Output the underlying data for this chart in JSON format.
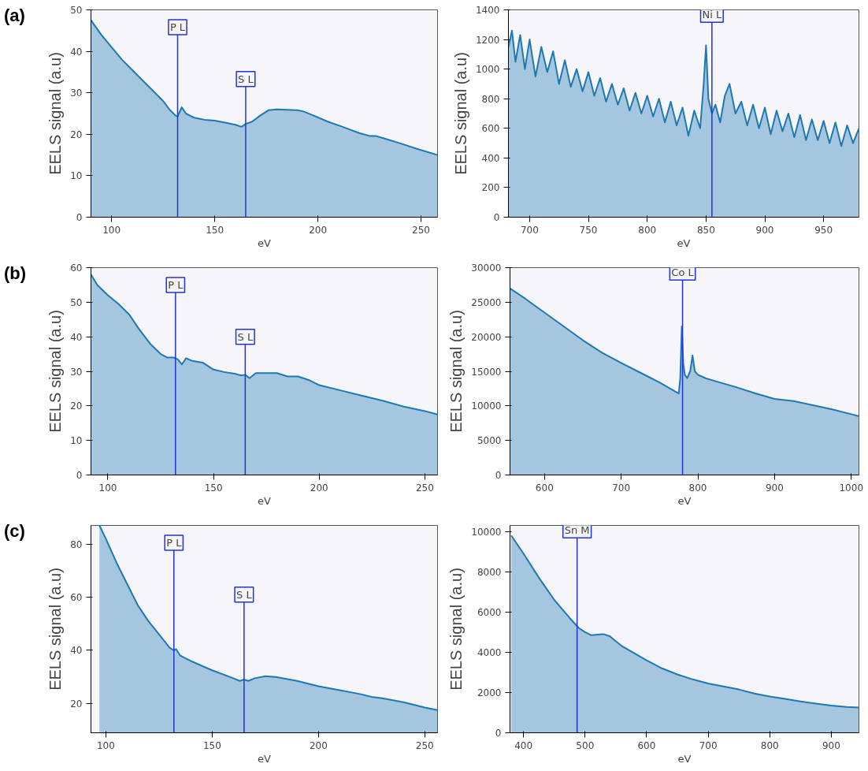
{
  "chart_data": [
    {
      "type": "area",
      "annotations": [
        "(a)"
      ],
      "xlabel": "eV",
      "ylabel": "EELS signal (a.u)",
      "xlim": [
        90,
        258
      ],
      "ylim": [
        0,
        50
      ],
      "xticks": [
        100,
        150,
        200,
        250
      ],
      "yticks": [
        0,
        10,
        20,
        30,
        40,
        50
      ],
      "grid": false,
      "ref_lines": [
        {
          "axis": "x",
          "value": 132,
          "label": "P L"
        },
        {
          "axis": "x",
          "value": 165,
          "label": "S L"
        }
      ],
      "series": [
        {
          "color": "#1f78b4",
          "x": [
            90,
            95,
            100,
            105,
            110,
            115,
            120,
            125,
            128,
            131,
            132,
            134,
            136,
            138,
            140,
            145,
            150,
            155,
            160,
            163,
            165,
            168,
            172,
            176,
            180,
            185,
            190,
            193,
            198,
            205,
            212,
            220,
            225,
            228,
            232,
            240,
            248,
            258
          ],
          "values": [
            47.5,
            44,
            41,
            38,
            35.5,
            33,
            30.5,
            28,
            26,
            24.5,
            24.3,
            26.5,
            25,
            24.5,
            24,
            23.5,
            23.3,
            22.8,
            22.3,
            21.8,
            22.5,
            23,
            24.5,
            25.8,
            26,
            25.9,
            25.8,
            25.5,
            24.5,
            23,
            21.8,
            20.3,
            19.6,
            19.6,
            19,
            17.8,
            16.5,
            15
          ]
        }
      ]
    },
    {
      "type": "area",
      "xlabel": "eV",
      "ylabel": "EELS signal (a.u)",
      "xlim": [
        682,
        980
      ],
      "ylim": [
        0,
        1400
      ],
      "xticks": [
        700,
        750,
        800,
        850,
        900,
        950
      ],
      "yticks": [
        0,
        200,
        400,
        600,
        800,
        1000,
        1200,
        1400
      ],
      "grid": false,
      "ref_lines": [
        {
          "axis": "x",
          "value": 855,
          "label": "Ni L"
        }
      ],
      "series": [
        {
          "color": "#1f78b4",
          "x": [
            682,
            685,
            688,
            692,
            696,
            700,
            705,
            710,
            715,
            720,
            725,
            730,
            735,
            740,
            745,
            750,
            755,
            760,
            765,
            770,
            775,
            780,
            785,
            790,
            795,
            800,
            805,
            810,
            815,
            820,
            825,
            830,
            835,
            840,
            845,
            848,
            850,
            852,
            855,
            858,
            862,
            866,
            870,
            875,
            880,
            885,
            890,
            895,
            900,
            905,
            910,
            915,
            920,
            925,
            930,
            935,
            940,
            945,
            950,
            955,
            960,
            965,
            970,
            975,
            980
          ],
          "values": [
            1150,
            1260,
            1050,
            1230,
            1000,
            1200,
            950,
            1150,
            980,
            1120,
            900,
            1060,
            880,
            1000,
            850,
            980,
            820,
            940,
            780,
            900,
            760,
            870,
            720,
            840,
            700,
            820,
            680,
            800,
            640,
            780,
            620,
            740,
            550,
            720,
            600,
            900,
            1160,
            800,
            700,
            760,
            640,
            820,
            900,
            700,
            780,
            620,
            760,
            600,
            740,
            560,
            720,
            580,
            700,
            540,
            690,
            520,
            660,
            520,
            650,
            500,
            640,
            480,
            620,
            500,
            600
          ]
        }
      ]
    },
    {
      "type": "area",
      "annotations": [
        "(b)"
      ],
      "xlabel": "eV",
      "ylabel": "EELS signal (a.u)",
      "xlim": [
        92,
        256
      ],
      "ylim": [
        0,
        60
      ],
      "xticks": [
        100,
        150,
        200,
        250
      ],
      "yticks": [
        0,
        10,
        20,
        30,
        40,
        50,
        60
      ],
      "grid": false,
      "ref_lines": [
        {
          "axis": "x",
          "value": 132,
          "label": "P L"
        },
        {
          "axis": "x",
          "value": 165,
          "label": "S L"
        }
      ],
      "series": [
        {
          "color": "#1f78b4",
          "x": [
            92,
            95,
            100,
            105,
            110,
            115,
            120,
            125,
            128,
            131,
            133,
            135,
            137,
            140,
            145,
            150,
            155,
            160,
            163,
            165,
            167,
            170,
            175,
            180,
            185,
            190,
            195,
            200,
            210,
            220,
            230,
            240,
            250,
            256
          ],
          "values": [
            58,
            55,
            52,
            49.5,
            46.5,
            42,
            38,
            35,
            34,
            34,
            33.5,
            32,
            33.8,
            33,
            32.5,
            30.5,
            29.8,
            29.3,
            28.8,
            29,
            28,
            29.5,
            29.5,
            29.5,
            28.5,
            28.5,
            27.5,
            26,
            24.5,
            23,
            21.5,
            19.8,
            18.5,
            17.5
          ]
        }
      ]
    },
    {
      "type": "area",
      "xlabel": "eV",
      "ylabel": "EELS signal (a.u)",
      "xlim": [
        555,
        1010
      ],
      "ylim": [
        0,
        30000
      ],
      "xticks": [
        600,
        700,
        800,
        900,
        1000
      ],
      "yticks": [
        0,
        5000,
        10000,
        15000,
        20000,
        25000,
        30000
      ],
      "grid": false,
      "ref_lines": [
        {
          "axis": "x",
          "value": 780,
          "label": "Co L"
        }
      ],
      "series": [
        {
          "color": "#1f78b4",
          "x": [
            555,
            575,
            600,
            625,
            650,
            675,
            700,
            725,
            750,
            770,
            775,
            777,
            779,
            781,
            783,
            786,
            790,
            793,
            796,
            800,
            810,
            825,
            850,
            875,
            900,
            925,
            950,
            975,
            1000,
            1010
          ],
          "values": [
            27000,
            25500,
            23500,
            21500,
            19500,
            17700,
            16200,
            14800,
            13400,
            12100,
            11800,
            14000,
            21500,
            16000,
            14500,
            14000,
            15000,
            17300,
            15000,
            14500,
            14000,
            13500,
            12700,
            11800,
            11000,
            10700,
            10100,
            9500,
            8800,
            8500
          ]
        }
      ]
    },
    {
      "type": "area",
      "annotations": [
        "(c)"
      ],
      "xlabel": "eV",
      "ylabel": "EELS signal (a.u)",
      "xlim": [
        93,
        256
      ],
      "ylim": [
        9,
        87
      ],
      "xticks": [
        100,
        150,
        200,
        250
      ],
      "yticks": [
        20,
        40,
        60,
        80
      ],
      "grid": false,
      "ref_lines": [
        {
          "axis": "x",
          "value": 132,
          "label": "P L"
        },
        {
          "axis": "x",
          "value": 165,
          "label": "S L"
        }
      ],
      "series": [
        {
          "color": "#1f78b4",
          "x": [
            97,
            100,
            105,
            110,
            115,
            120,
            125,
            130,
            132,
            133,
            135,
            140,
            150,
            160,
            163,
            165,
            167,
            170,
            175,
            180,
            190,
            200,
            210,
            220,
            225,
            230,
            240,
            250,
            256
          ],
          "values": [
            87,
            82,
            73,
            65,
            57,
            51,
            46,
            41,
            40,
            40.5,
            38,
            36,
            32.5,
            29.5,
            28.5,
            29,
            28.5,
            29.5,
            30.3,
            30,
            28.5,
            26.5,
            25,
            23.5,
            22.5,
            22,
            20.5,
            18.5,
            17.5
          ]
        }
      ]
    },
    {
      "type": "area",
      "xlabel": "eV",
      "ylabel": "EELS signal (a.u)",
      "xlim": [
        378,
        945
      ],
      "ylim": [
        0,
        10300
      ],
      "xticks": [
        400,
        500,
        600,
        700,
        800,
        900
      ],
      "yticks": [
        0,
        2000,
        4000,
        6000,
        8000,
        10000
      ],
      "grid": false,
      "ref_lines": [
        {
          "axis": "x",
          "value": 487,
          "label": "Sn M"
        }
      ],
      "series": [
        {
          "color": "#1f78b4",
          "x": [
            380,
            400,
            425,
            450,
            475,
            490,
            500,
            510,
            530,
            540,
            560,
            580,
            600,
            625,
            650,
            675,
            700,
            725,
            750,
            775,
            800,
            825,
            850,
            875,
            900,
            925,
            945
          ],
          "values": [
            9800,
            8900,
            7700,
            6600,
            5700,
            5200,
            5000,
            4850,
            4900,
            4800,
            4300,
            3950,
            3600,
            3200,
            2900,
            2650,
            2450,
            2300,
            2150,
            1950,
            1800,
            1680,
            1560,
            1450,
            1350,
            1280,
            1250
          ]
        }
      ]
    }
  ]
}
